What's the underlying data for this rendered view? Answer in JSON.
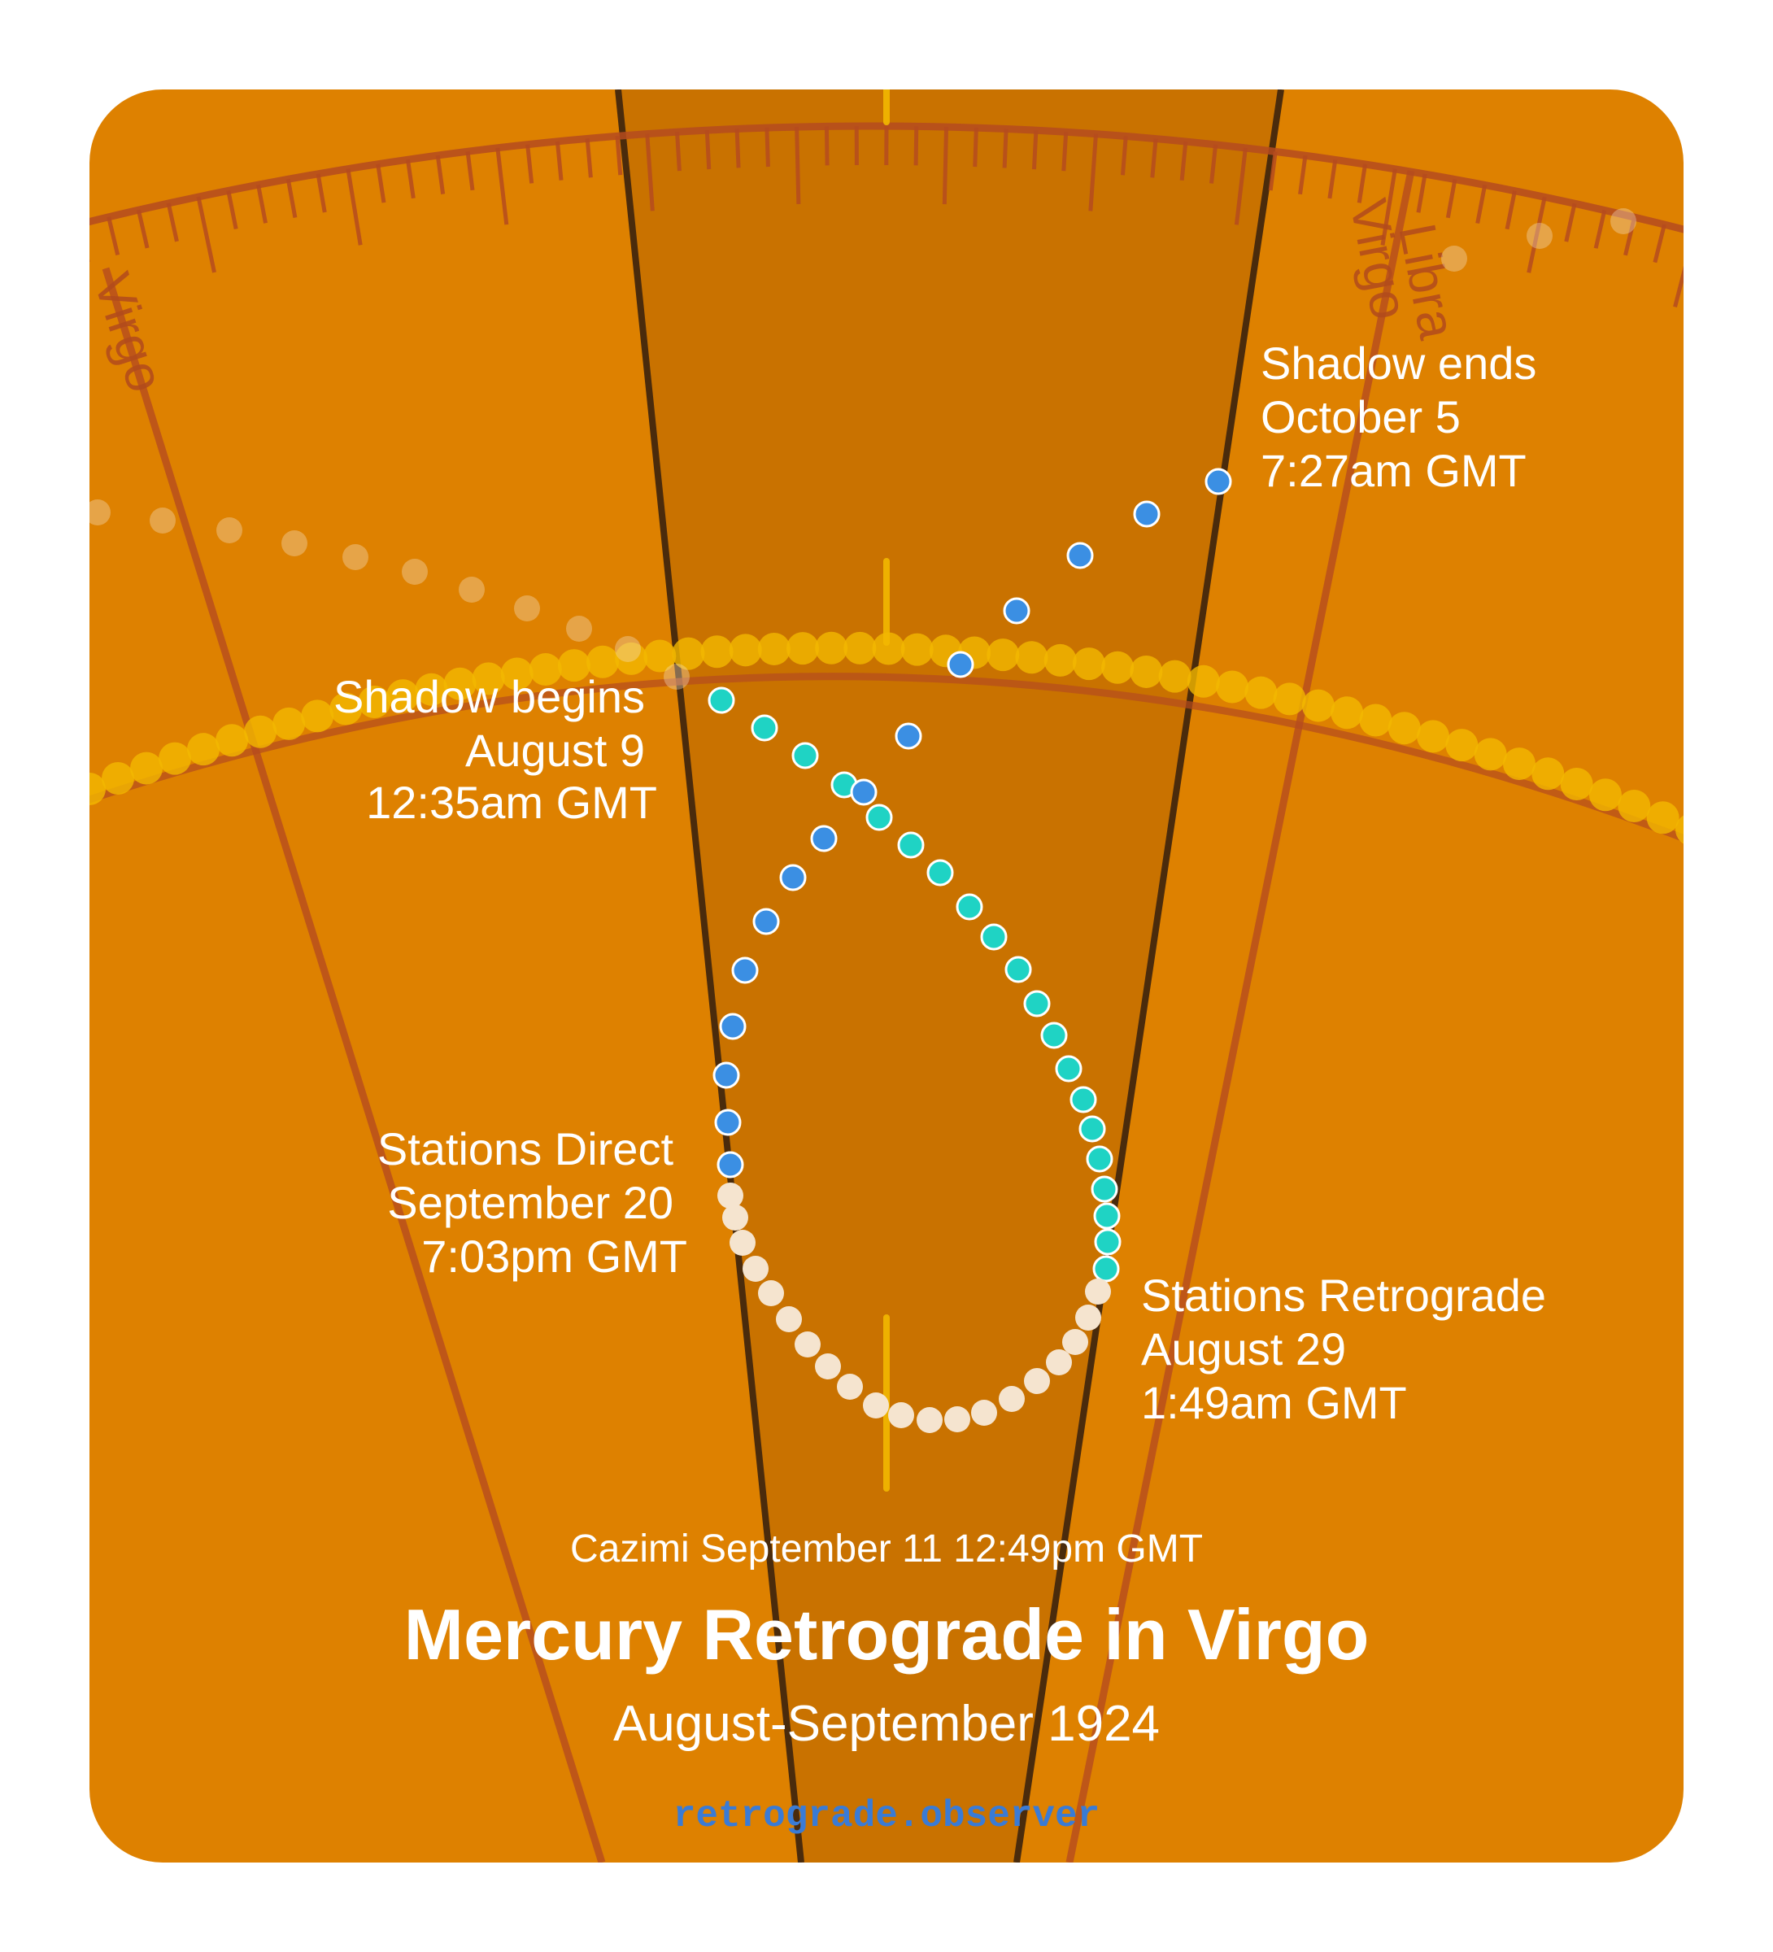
{
  "colors": {
    "background": "#de8100",
    "shadow_zone": "#c97200",
    "zone_edge": "#4a2b0c",
    "grid_line": "#b54b1e",
    "sun_path": "#f2b800",
    "mercury_forward": "#3b8fe3",
    "mercury_retro": "#1fd3c4",
    "mercury_direct": "#f5e4cf",
    "text": "#ffffff",
    "brand": "#3a7bd5"
  },
  "signs": {
    "left": "Virgo",
    "right_near": "Virgo",
    "right_far": "Libra"
  },
  "labels": {
    "shadow_begins": [
      "Shadow begins",
      "August 9",
      "12:35am GMT"
    ],
    "shadow_ends": [
      "Shadow ends",
      "October 5",
      "7:27am GMT"
    ],
    "stations_direct": [
      "Stations Direct",
      "September 20",
      "7:03pm GMT"
    ],
    "stations_retrograde": [
      "Stations Retrograde",
      "August 29",
      "1:49am GMT"
    ]
  },
  "cazimi": "Cazimi September 11 12:49pm GMT",
  "title": "Mercury Retrograde in Virgo",
  "subtitle": "August-September 1924",
  "brand": "retrograde.observer"
}
